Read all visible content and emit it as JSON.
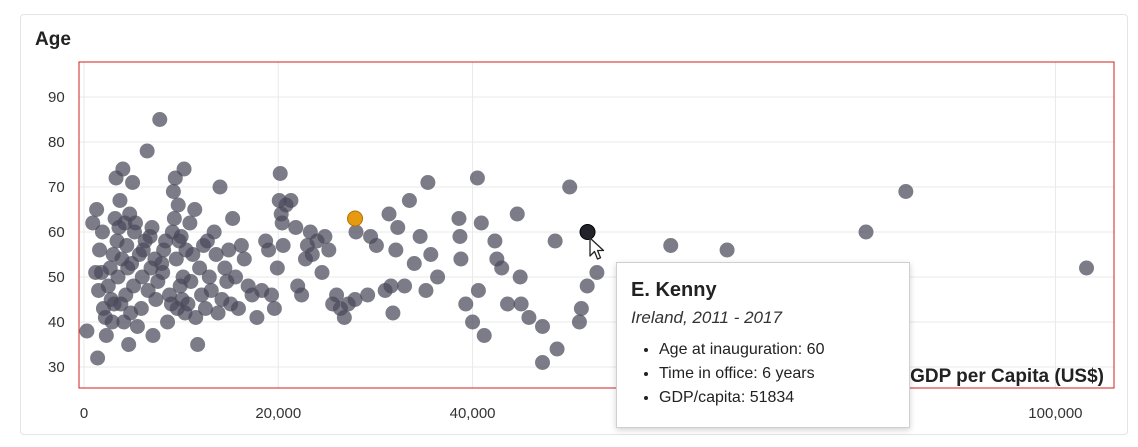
{
  "chart_data": {
    "type": "scatter",
    "ylabel": "Age",
    "xlabel": "GDP per Capita (US$)",
    "xlim": [
      0,
      105000
    ],
    "ylim": [
      26,
      96
    ],
    "x_ticks": [
      {
        "value": 0,
        "label": "0"
      },
      {
        "value": 20000,
        "label": "20,000"
      },
      {
        "value": 40000,
        "label": "40,000"
      },
      {
        "value": 100000,
        "label": "100,000"
      }
    ],
    "y_ticks": [
      {
        "value": 30,
        "label": "30"
      },
      {
        "value": 40,
        "label": "40"
      },
      {
        "value": 50,
        "label": "50"
      },
      {
        "value": 60,
        "label": "60"
      },
      {
        "value": 70,
        "label": "70"
      },
      {
        "value": 80,
        "label": "80"
      },
      {
        "value": 90,
        "label": "90"
      }
    ],
    "grid": true,
    "colors": {
      "point": "#4a4a5a",
      "highlight": "#e59a10",
      "selected": "#22222c",
      "frame": "#cc2222"
    },
    "highlight": {
      "x": 27900,
      "y": 63
    },
    "selected": {
      "x": 51834,
      "y": 60
    },
    "points": [
      [
        300,
        38
      ],
      [
        900,
        62
      ],
      [
        1200,
        51
      ],
      [
        1300,
        65
      ],
      [
        1400,
        32
      ],
      [
        1500,
        47
      ],
      [
        1600,
        56
      ],
      [
        1800,
        51
      ],
      [
        1900,
        60
      ],
      [
        2000,
        43
      ],
      [
        2200,
        41
      ],
      [
        2300,
        37
      ],
      [
        2500,
        48
      ],
      [
        2700,
        52
      ],
      [
        2800,
        45
      ],
      [
        2900,
        40
      ],
      [
        3000,
        55
      ],
      [
        3100,
        44
      ],
      [
        3200,
        63
      ],
      [
        3300,
        72
      ],
      [
        3400,
        58
      ],
      [
        3500,
        50
      ],
      [
        3600,
        61
      ],
      [
        3700,
        67
      ],
      [
        3800,
        44
      ],
      [
        3900,
        54
      ],
      [
        4000,
        74
      ],
      [
        4100,
        40
      ],
      [
        4200,
        62
      ],
      [
        4300,
        46
      ],
      [
        4400,
        57
      ],
      [
        4500,
        52
      ],
      [
        4600,
        35
      ],
      [
        4700,
        64
      ],
      [
        4800,
        42
      ],
      [
        4900,
        53
      ],
      [
        5000,
        71
      ],
      [
        5100,
        48
      ],
      [
        5200,
        60
      ],
      [
        5300,
        62
      ],
      [
        5500,
        39
      ],
      [
        5700,
        55
      ],
      [
        5900,
        43
      ],
      [
        6000,
        50
      ],
      [
        6100,
        56
      ],
      [
        6300,
        58
      ],
      [
        6500,
        78
      ],
      [
        6600,
        47
      ],
      [
        6800,
        59
      ],
      [
        6900,
        52
      ],
      [
        7000,
        61
      ],
      [
        7100,
        37
      ],
      [
        7300,
        54
      ],
      [
        7400,
        45
      ],
      [
        7600,
        49
      ],
      [
        7800,
        85
      ],
      [
        8000,
        53
      ],
      [
        8100,
        51
      ],
      [
        8200,
        56
      ],
      [
        8400,
        58
      ],
      [
        8600,
        40
      ],
      [
        8800,
        46
      ],
      [
        9000,
        44
      ],
      [
        9100,
        60
      ],
      [
        9200,
        69
      ],
      [
        9300,
        63
      ],
      [
        9400,
        72
      ],
      [
        9500,
        54
      ],
      [
        9600,
        43
      ],
      [
        9700,
        66
      ],
      [
        9800,
        58
      ],
      [
        9900,
        48
      ],
      [
        10000,
        59
      ],
      [
        10100,
        45
      ],
      [
        10200,
        50
      ],
      [
        10300,
        74
      ],
      [
        10400,
        42
      ],
      [
        10500,
        56
      ],
      [
        10700,
        44
      ],
      [
        10900,
        62
      ],
      [
        11000,
        49
      ],
      [
        11200,
        55
      ],
      [
        11400,
        65
      ],
      [
        11500,
        41
      ],
      [
        11700,
        35
      ],
      [
        11900,
        52
      ],
      [
        12100,
        46
      ],
      [
        12300,
        57
      ],
      [
        12500,
        43
      ],
      [
        12700,
        58
      ],
      [
        12900,
        50
      ],
      [
        13100,
        47
      ],
      [
        13400,
        60
      ],
      [
        13600,
        55
      ],
      [
        13800,
        42
      ],
      [
        14000,
        70
      ],
      [
        14200,
        45
      ],
      [
        14500,
        52
      ],
      [
        14700,
        49
      ],
      [
        14900,
        56
      ],
      [
        15100,
        44
      ],
      [
        15300,
        63
      ],
      [
        15600,
        50
      ],
      [
        15900,
        43
      ],
      [
        16200,
        57
      ],
      [
        16500,
        54
      ],
      [
        16900,
        48
      ],
      [
        17300,
        46
      ],
      [
        17800,
        41
      ],
      [
        18300,
        47
      ],
      [
        18700,
        58
      ],
      [
        19000,
        56
      ],
      [
        19300,
        46
      ],
      [
        19600,
        43
      ],
      [
        19900,
        52
      ],
      [
        20100,
        67
      ],
      [
        20200,
        73
      ],
      [
        20300,
        64
      ],
      [
        20400,
        62
      ],
      [
        20500,
        57
      ],
      [
        20800,
        66
      ],
      [
        21300,
        67
      ],
      [
        21800,
        61
      ],
      [
        22000,
        48
      ],
      [
        22400,
        46
      ],
      [
        22800,
        54
      ],
      [
        23000,
        57
      ],
      [
        23300,
        60
      ],
      [
        23500,
        55
      ],
      [
        24000,
        58
      ],
      [
        24500,
        51
      ],
      [
        24800,
        59
      ],
      [
        25200,
        56
      ],
      [
        25600,
        44
      ],
      [
        26000,
        46
      ],
      [
        26400,
        43
      ],
      [
        26800,
        41
      ],
      [
        27200,
        44
      ],
      [
        27900,
        45
      ],
      [
        28000,
        60
      ],
      [
        29200,
        46
      ],
      [
        29500,
        59
      ],
      [
        30100,
        57
      ],
      [
        31000,
        47
      ],
      [
        31400,
        64
      ],
      [
        31600,
        48
      ],
      [
        31800,
        42
      ],
      [
        32100,
        56
      ],
      [
        32300,
        61
      ],
      [
        33000,
        48
      ],
      [
        33500,
        67
      ],
      [
        34000,
        53
      ],
      [
        34600,
        59
      ],
      [
        35200,
        47
      ],
      [
        35400,
        71
      ],
      [
        35700,
        55
      ],
      [
        36400,
        50
      ],
      [
        38600,
        63
      ],
      [
        38700,
        59
      ],
      [
        38800,
        54
      ],
      [
        39300,
        44
      ],
      [
        40000,
        40
      ],
      [
        40500,
        72
      ],
      [
        40600,
        47
      ],
      [
        40900,
        62
      ],
      [
        41200,
        37
      ],
      [
        42300,
        58
      ],
      [
        42500,
        54
      ],
      [
        43000,
        52
      ],
      [
        43600,
        44
      ],
      [
        44600,
        64
      ],
      [
        44900,
        50
      ],
      [
        45000,
        44
      ],
      [
        45800,
        41
      ],
      [
        47200,
        39
      ],
      [
        47200,
        31
      ],
      [
        48500,
        58
      ],
      [
        48700,
        34
      ],
      [
        50000,
        70
      ],
      [
        51000,
        40
      ],
      [
        51200,
        43
      ],
      [
        51800,
        48
      ],
      [
        52800,
        51
      ],
      [
        60400,
        57
      ],
      [
        66200,
        56
      ],
      [
        80500,
        60
      ],
      [
        84600,
        69
      ],
      [
        103200,
        52
      ]
    ]
  },
  "tooltip": {
    "name": "E. Kenny",
    "subtitle": "Ireland, 2011 - 2017",
    "items": [
      "Age at inauguration: 60",
      "Time in office: 6 years",
      "GDP/capita: 51834"
    ]
  }
}
